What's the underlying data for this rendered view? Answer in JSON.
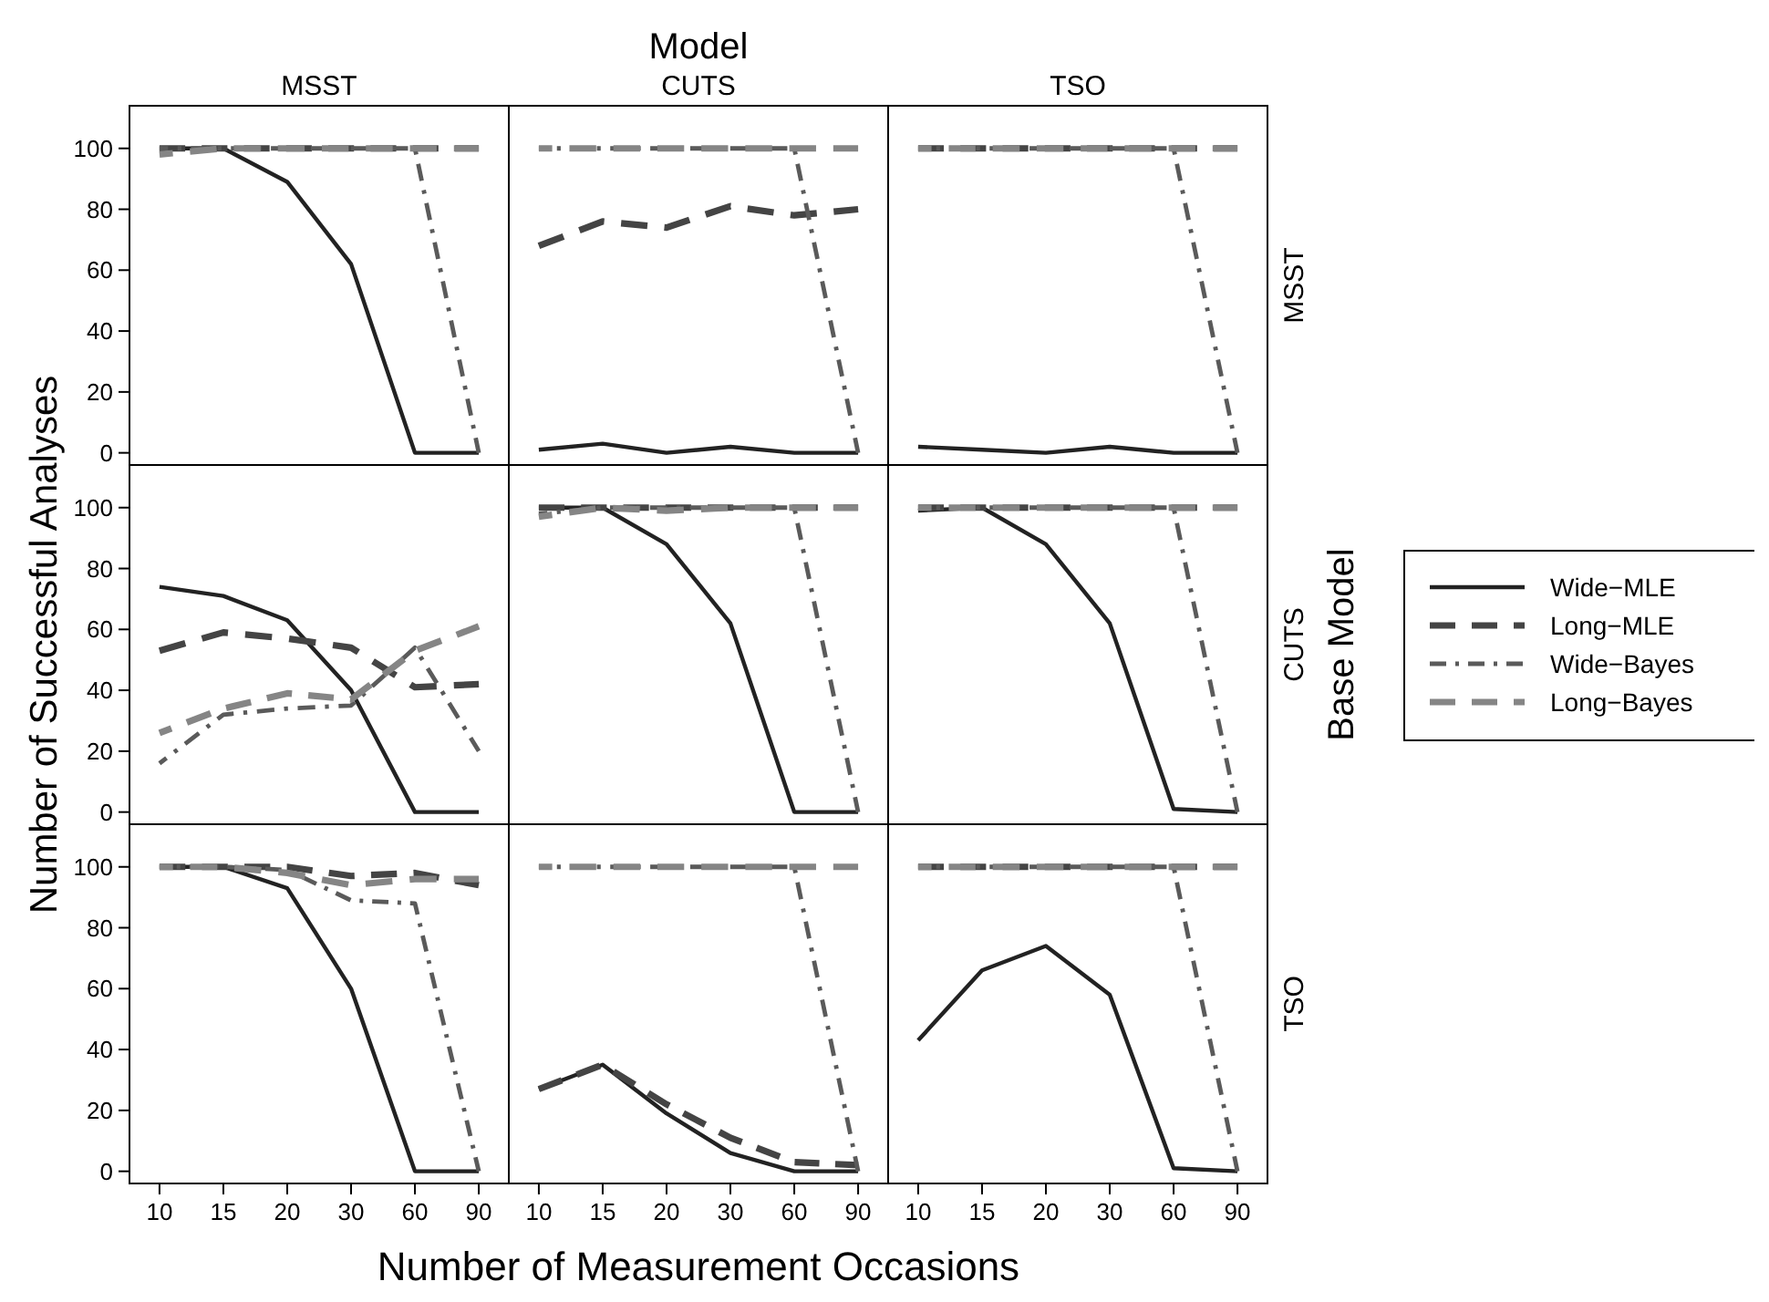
{
  "chart_data": [
    {
      "type": "line",
      "title": "MSST",
      "categories": [
        "10",
        "15",
        "20",
        "30",
        "60",
        "90"
      ],
      "ylim": [
        -4,
        114
      ],
      "yticks": [
        0,
        20,
        40,
        60,
        80,
        100
      ],
      "tick_labels": "y",
      "series": [
        {
          "color": "#222222",
          "line_style": "solid",
          "values": [
            100,
            100,
            89,
            62,
            0,
            0
          ]
        },
        {
          "color": "#444444",
          "line_style": "dashed",
          "values": [
            100,
            100,
            100,
            100,
            100,
            100
          ]
        },
        {
          "color": "#5a5a5a",
          "line_style": "dashdot",
          "values": [
            100,
            100,
            100,
            100,
            100,
            0
          ]
        },
        {
          "color": "#858585",
          "line_style": "dashed",
          "values": [
            98,
            100,
            100,
            100,
            100,
            100
          ]
        }
      ]
    },
    {
      "type": "line",
      "title": "CUTS",
      "annotations": [
        "Model"
      ],
      "categories": [
        "10",
        "15",
        "20",
        "30",
        "60",
        "90"
      ],
      "ylim": [
        -4,
        114
      ],
      "yticks": [
        0,
        20,
        40,
        60,
        80,
        100
      ],
      "tick_labels": false,
      "series": [
        {
          "color": "#222222",
          "line_style": "solid",
          "values": [
            1,
            3,
            0,
            2,
            0,
            0
          ]
        },
        {
          "color": "#444444",
          "line_style": "dashed",
          "values": [
            68,
            76,
            74,
            81,
            78,
            80
          ]
        },
        {
          "color": "#5a5a5a",
          "line_style": "dashdot",
          "values": [
            100,
            100,
            100,
            100,
            100,
            0
          ]
        },
        {
          "color": "#858585",
          "line_style": "dashed",
          "values": [
            100,
            100,
            100,
            100,
            100,
            100
          ]
        }
      ]
    },
    {
      "type": "line",
      "title": "TSO",
      "y2label": "MSST",
      "categories": [
        "10",
        "15",
        "20",
        "30",
        "60",
        "90"
      ],
      "ylim": [
        -4,
        114
      ],
      "yticks": [
        0,
        20,
        40,
        60,
        80,
        100
      ],
      "tick_labels": false,
      "series": [
        {
          "color": "#222222",
          "line_style": "solid",
          "values": [
            2,
            1,
            0,
            2,
            0,
            0
          ]
        },
        {
          "color": "#444444",
          "line_style": "dashed",
          "values": [
            100,
            100,
            100,
            100,
            100,
            100
          ]
        },
        {
          "color": "#5a5a5a",
          "line_style": "dashdot",
          "values": [
            100,
            100,
            100,
            100,
            100,
            0
          ]
        },
        {
          "color": "#858585",
          "line_style": "dashed",
          "values": [
            100,
            100,
            100,
            100,
            100,
            100
          ]
        }
      ]
    },
    {
      "type": "line",
      "ylabel": "Number of Successful Analyses",
      "categories": [
        "10",
        "15",
        "20",
        "30",
        "60",
        "90"
      ],
      "ylim": [
        -4,
        114
      ],
      "yticks": [
        0,
        20,
        40,
        60,
        80,
        100
      ],
      "tick_labels": "y",
      "series": [
        {
          "color": "#222222",
          "line_style": "solid",
          "values": [
            74,
            71,
            63,
            40,
            0,
            0
          ]
        },
        {
          "color": "#444444",
          "line_style": "dashed",
          "values": [
            53,
            59,
            57,
            54,
            41,
            42
          ]
        },
        {
          "color": "#5a5a5a",
          "line_style": "dashdot",
          "values": [
            16,
            32,
            34,
            35,
            54,
            20
          ]
        },
        {
          "color": "#858585",
          "line_style": "dashed",
          "values": [
            26,
            34,
            39,
            37,
            53,
            61
          ]
        }
      ]
    },
    {
      "type": "line",
      "categories": [
        "10",
        "15",
        "20",
        "30",
        "60",
        "90"
      ],
      "ylim": [
        -4,
        114
      ],
      "yticks": [
        0,
        20,
        40,
        60,
        80,
        100
      ],
      "tick_labels": false,
      "series": [
        {
          "color": "#222222",
          "line_style": "solid",
          "values": [
            100,
            100,
            88,
            62,
            0,
            0
          ]
        },
        {
          "color": "#444444",
          "line_style": "dashed",
          "values": [
            100,
            100,
            100,
            100,
            100,
            100
          ]
        },
        {
          "color": "#5a5a5a",
          "line_style": "dashdot",
          "values": [
            98,
            100,
            100,
            100,
            100,
            0
          ]
        },
        {
          "color": "#858585",
          "line_style": "dashed",
          "values": [
            97,
            100,
            99,
            100,
            100,
            100
          ]
        }
      ]
    },
    {
      "type": "line",
      "y2label": "CUTS",
      "annotations": [
        "Base Model"
      ],
      "legend": "right",
      "categories": [
        "10",
        "15",
        "20",
        "30",
        "60",
        "90"
      ],
      "ylim": [
        -4,
        114
      ],
      "yticks": [
        0,
        20,
        40,
        60,
        80,
        100
      ],
      "tick_labels": false,
      "series": [
        {
          "name": "Wide−MLE",
          "color": "#222222",
          "line_style": "solid",
          "values": [
            99,
            100,
            88,
            62,
            1,
            0
          ]
        },
        {
          "name": "Long−MLE",
          "color": "#444444",
          "line_style": "dashed",
          "values": [
            100,
            100,
            100,
            100,
            100,
            100
          ]
        },
        {
          "name": "Wide−Bayes",
          "color": "#5a5a5a",
          "line_style": "dashdot",
          "values": [
            100,
            100,
            100,
            100,
            100,
            0
          ]
        },
        {
          "name": "Long−Bayes",
          "color": "#858585",
          "line_style": "dashed",
          "values": [
            100,
            100,
            100,
            100,
            100,
            100
          ]
        }
      ]
    },
    {
      "type": "line",
      "categories": [
        "10",
        "15",
        "20",
        "30",
        "60",
        "90"
      ],
      "ylim": [
        -4,
        114
      ],
      "yticks": [
        0,
        20,
        40,
        60,
        80,
        100
      ],
      "series": [
        {
          "color": "#222222",
          "line_style": "solid",
          "values": [
            100,
            100,
            93,
            60,
            0,
            0
          ]
        },
        {
          "color": "#444444",
          "line_style": "dashed",
          "values": [
            100,
            100,
            100,
            97,
            98,
            94
          ]
        },
        {
          "color": "#5a5a5a",
          "line_style": "dashdot",
          "values": [
            100,
            100,
            99,
            89,
            88,
            0
          ]
        },
        {
          "color": "#858585",
          "line_style": "dashed",
          "values": [
            100,
            100,
            98,
            94,
            96,
            96
          ]
        }
      ]
    },
    {
      "type": "line",
      "xlabel": "Number of Measurement Occasions",
      "categories": [
        "10",
        "15",
        "20",
        "30",
        "60",
        "90"
      ],
      "ylim": [
        -4,
        114
      ],
      "yticks": [
        0,
        20,
        40,
        60,
        80,
        100
      ],
      "tick_labels": "x",
      "series": [
        {
          "color": "#222222",
          "line_style": "solid",
          "values": [
            27,
            35,
            19,
            6,
            0,
            0
          ]
        },
        {
          "color": "#444444",
          "line_style": "dashed",
          "values": [
            27,
            35,
            22,
            11,
            3,
            2
          ]
        },
        {
          "color": "#5a5a5a",
          "line_style": "dashdot",
          "values": [
            100,
            100,
            100,
            100,
            100,
            0
          ]
        },
        {
          "color": "#858585",
          "line_style": "dashed",
          "values": [
            100,
            100,
            100,
            100,
            100,
            100
          ]
        }
      ]
    },
    {
      "type": "line",
      "y2label": "TSO",
      "categories": [
        "10",
        "15",
        "20",
        "30",
        "60",
        "90"
      ],
      "ylim": [
        -4,
        114
      ],
      "yticks": [
        0,
        20,
        40,
        60,
        80,
        100
      ],
      "tick_labels": "x",
      "series": [
        {
          "color": "#222222",
          "line_style": "solid",
          "values": [
            43,
            66,
            74,
            58,
            1,
            0
          ]
        },
        {
          "color": "#444444",
          "line_style": "dashed",
          "values": [
            100,
            100,
            100,
            100,
            100,
            100
          ]
        },
        {
          "color": "#5a5a5a",
          "line_style": "dashdot",
          "values": [
            100,
            100,
            100,
            100,
            100,
            0
          ]
        },
        {
          "color": "#858585",
          "line_style": "dashed",
          "values": [
            100,
            100,
            100,
            100,
            100,
            100
          ]
        }
      ]
    }
  ]
}
